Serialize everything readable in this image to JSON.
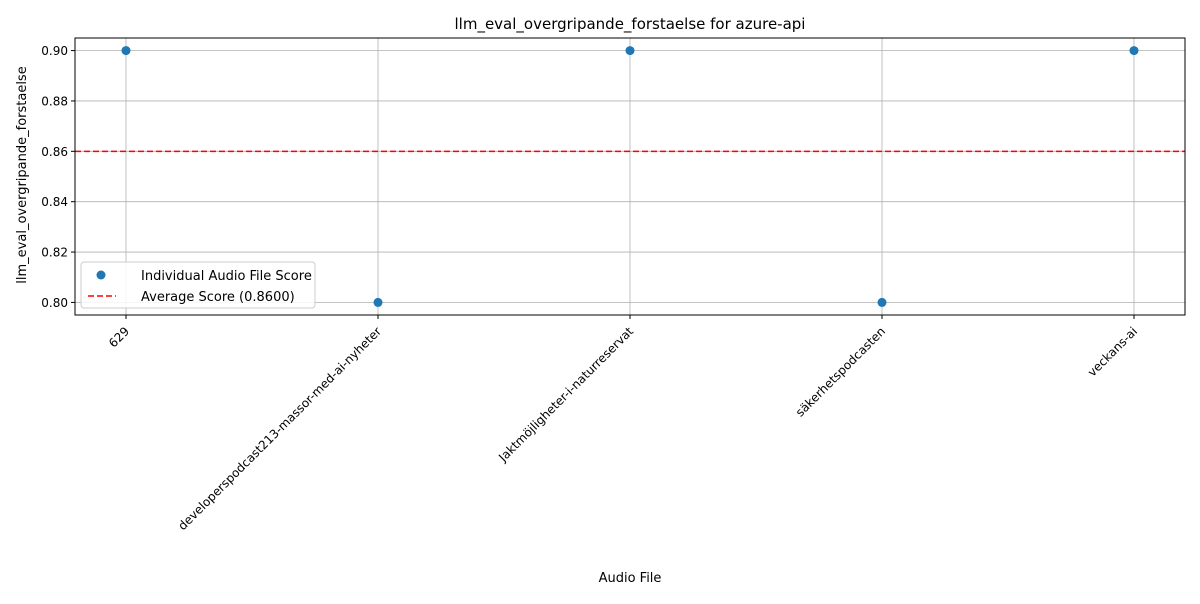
{
  "chart_data": {
    "type": "scatter",
    "title": "llm_eval_overgripande_forstaelse for azure-api",
    "xlabel": "Audio File",
    "ylabel": "llm_eval_overgripande_forstaelse",
    "categories": [
      "629",
      "developerspodcast213-massor-med-ai-nyheter",
      "Jaktmöjligheter-i-naturreservat",
      "säkerhetspodcasten",
      "veckans-ai"
    ],
    "series": [
      {
        "name": "Individual Audio File Score",
        "values": [
          0.9,
          0.8,
          0.9,
          0.8,
          0.9
        ],
        "color": "#1f77b4"
      }
    ],
    "reference_lines": [
      {
        "name": "Average Score (0.8600)",
        "value": 0.86,
        "color": "#ff0000",
        "style": "dashed"
      }
    ],
    "ylim": [
      0.795,
      0.905
    ],
    "yticks": [
      0.8,
      0.82,
      0.84,
      0.86,
      0.88,
      0.9
    ],
    "ytick_labels": [
      "0.80",
      "0.82",
      "0.84",
      "0.86",
      "0.88",
      "0.90"
    ],
    "grid": true,
    "legend_position": "lower-left"
  }
}
